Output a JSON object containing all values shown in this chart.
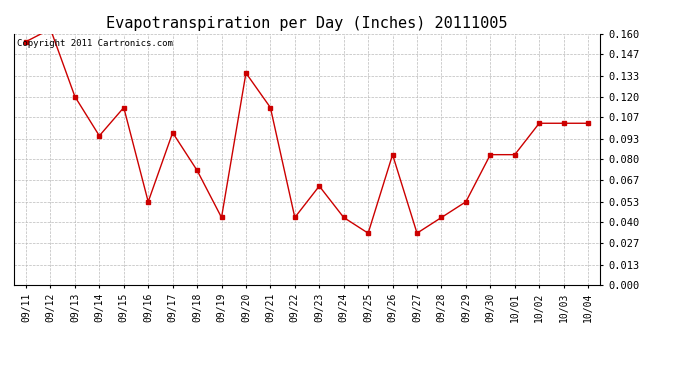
{
  "title": "Evapotranspiration per Day (Inches) 20111005",
  "copyright_text": "Copyright 2011 Cartronics.com",
  "x_labels": [
    "09/11",
    "09/12",
    "09/13",
    "09/14",
    "09/15",
    "09/16",
    "09/17",
    "09/18",
    "09/19",
    "09/20",
    "09/21",
    "09/22",
    "09/23",
    "09/24",
    "09/25",
    "09/26",
    "09/27",
    "09/28",
    "09/29",
    "09/30",
    "10/01",
    "10/02",
    "10/03",
    "10/04"
  ],
  "y_values": [
    0.155,
    0.163,
    0.12,
    0.095,
    0.113,
    0.053,
    0.097,
    0.073,
    0.043,
    0.135,
    0.113,
    0.043,
    0.063,
    0.043,
    0.033,
    0.083,
    0.033,
    0.043,
    0.053,
    0.083,
    0.083,
    0.103,
    0.103,
    0.103
  ],
  "line_color": "#cc0000",
  "marker": "s",
  "marker_size": 2.5,
  "ylim": [
    0.0,
    0.16
  ],
  "yticks": [
    0.0,
    0.013,
    0.027,
    0.04,
    0.053,
    0.067,
    0.08,
    0.093,
    0.107,
    0.12,
    0.133,
    0.147,
    0.16
  ],
  "background_color": "#ffffff",
  "grid_color": "#bbbbbb",
  "title_fontsize": 11,
  "copyright_fontsize": 6.5,
  "tick_fontsize": 7,
  "ytick_fontsize": 7.5
}
